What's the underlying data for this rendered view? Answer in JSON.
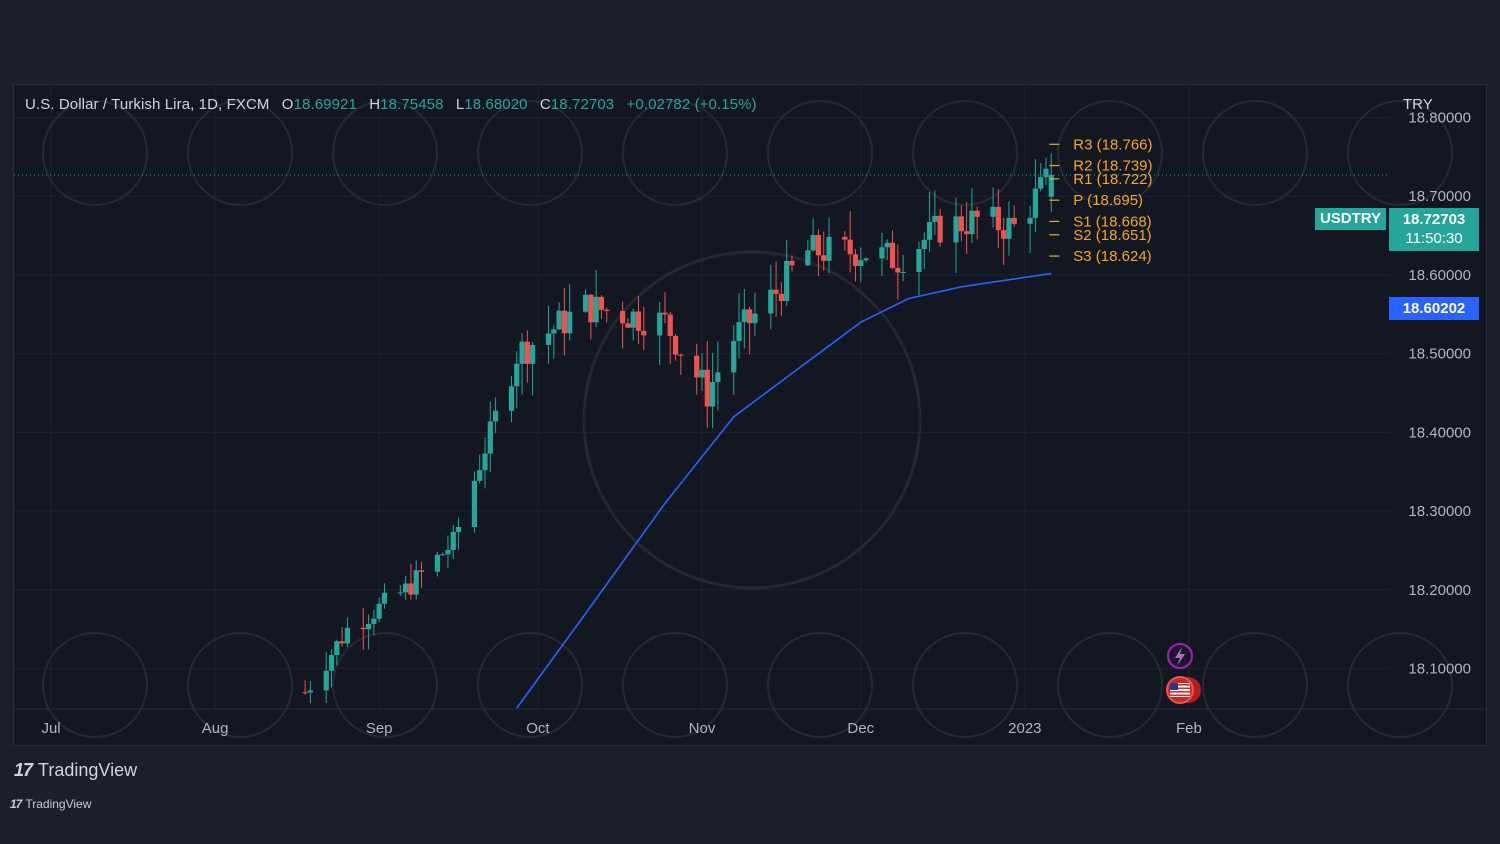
{
  "header": {
    "symbol_desc": "U.S. Dollar / Turkish Lira, 1D, FXCM",
    "ohlc": [
      {
        "key": "O",
        "value": "18.69921"
      },
      {
        "key": "H",
        "value": "18.75458"
      },
      {
        "key": "L",
        "value": "18.68020"
      },
      {
        "key": "C",
        "value": "18.72703"
      }
    ],
    "change": "+0.02782 (+0.15%)",
    "currency": "TRY"
  },
  "price_tags": {
    "symbol": "USDTRY",
    "last_price": "18.72703",
    "countdown": "11:50:30",
    "ma_value": "18.60202"
  },
  "branding": {
    "logo_mark": "17",
    "logo_text": "TradingView"
  },
  "colors": {
    "up": "#26a69a",
    "down": "#ef5350",
    "ma": "#2962ff",
    "pivot": "#f5a623",
    "ma_tag": "#2962ff",
    "price_tag": "#26a69a",
    "background": "#131722"
  },
  "chart_data": {
    "type": "candlestick",
    "symbol": "USDTRY",
    "interval": "1D",
    "ylim": [
      18.05,
      18.84
    ],
    "y_ticks": [
      "18.10000",
      "18.20000",
      "18.30000",
      "18.40000",
      "18.50000",
      "18.60000",
      "18.70000",
      "18.80000"
    ],
    "x_ticks": [
      {
        "label": "Jul",
        "date": "2022-07-01"
      },
      {
        "label": "Aug",
        "date": "2022-08-01"
      },
      {
        "label": "Sep",
        "date": "2022-09-01"
      },
      {
        "label": "Oct",
        "date": "2022-10-01"
      },
      {
        "label": "Nov",
        "date": "2022-11-01"
      },
      {
        "label": "Dec",
        "date": "2022-12-01"
      },
      {
        "label": "2023",
        "date": "2023-01-01"
      },
      {
        "label": "Feb",
        "date": "2023-02-01"
      }
    ],
    "x_range": [
      "2022-06-24",
      "2023-03-11"
    ],
    "trend_path": [
      {
        "date": "2022-08-18",
        "close": 18.07
      },
      {
        "date": "2022-08-26",
        "close": 18.15
      },
      {
        "date": "2022-09-06",
        "close": 18.2
      },
      {
        "date": "2022-09-15",
        "close": 18.26
      },
      {
        "date": "2022-09-21",
        "close": 18.38
      },
      {
        "date": "2022-09-27",
        "close": 18.5
      },
      {
        "date": "2022-10-10",
        "close": 18.56
      },
      {
        "date": "2022-10-25",
        "close": 18.54
      },
      {
        "date": "2022-11-02",
        "close": 18.45
      },
      {
        "date": "2022-11-07",
        "close": 18.52
      },
      {
        "date": "2022-11-14",
        "close": 18.57
      },
      {
        "date": "2022-11-21",
        "close": 18.63
      },
      {
        "date": "2022-12-01",
        "close": 18.63
      },
      {
        "date": "2022-12-08",
        "close": 18.62
      },
      {
        "date": "2022-12-16",
        "close": 18.66
      },
      {
        "date": "2022-12-23",
        "close": 18.67
      },
      {
        "date": "2022-12-30",
        "close": 18.66
      },
      {
        "date": "2023-01-06",
        "close": 18.727
      }
    ],
    "last_candle": {
      "date": "2023-01-06",
      "open": 18.69921,
      "high": 18.75458,
      "low": 18.6802,
      "close": 18.72703
    },
    "moving_average": [
      {
        "date": "2022-09-27",
        "value": 18.05
      },
      {
        "date": "2022-10-10",
        "value": 18.17
      },
      {
        "date": "2022-10-25",
        "value": 18.31
      },
      {
        "date": "2022-11-07",
        "value": 18.42
      },
      {
        "date": "2022-11-21",
        "value": 18.49
      },
      {
        "date": "2022-12-01",
        "value": 18.54
      },
      {
        "date": "2022-12-10",
        "value": 18.57
      },
      {
        "date": "2022-12-20",
        "value": 18.585
      },
      {
        "date": "2023-01-06",
        "value": 18.602
      }
    ],
    "pivots": [
      {
        "label": "R3",
        "value": 18.766,
        "text": "R3 (18.766)"
      },
      {
        "label": "R2",
        "value": 18.739,
        "text": "R2 (18.739)"
      },
      {
        "label": "R1",
        "value": 18.722,
        "text": "R1 (18.722)"
      },
      {
        "label": "P",
        "value": 18.695,
        "text": "P (18.695)"
      },
      {
        "label": "S1",
        "value": 18.668,
        "text": "S1 (18.668)"
      },
      {
        "label": "S2",
        "value": 18.651,
        "text": "S2 (18.651)"
      },
      {
        "label": "S3",
        "value": 18.624,
        "text": "S3 (18.624)"
      }
    ]
  }
}
